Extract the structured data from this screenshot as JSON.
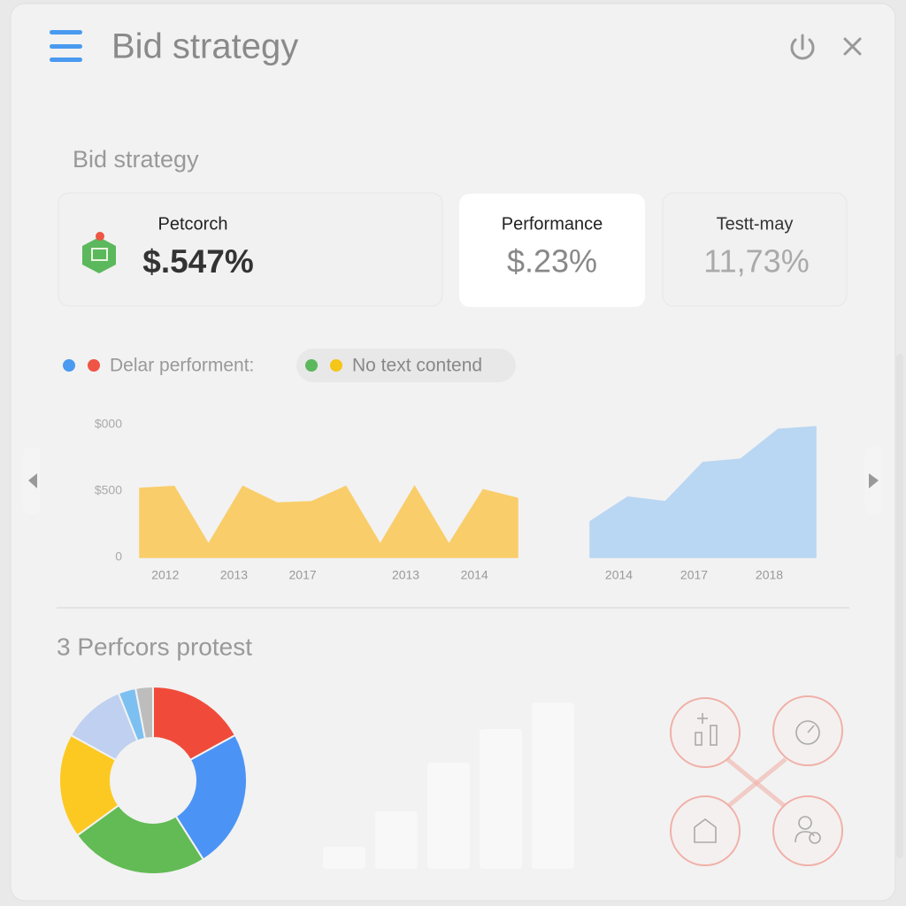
{
  "header": {
    "title": "Bid strategy"
  },
  "section_title": "Bid strategy",
  "cards": [
    {
      "label": "Petcorch",
      "value": "$.547%"
    },
    {
      "label": "Performance",
      "value": "$.23%"
    },
    {
      "label": "Testt-may",
      "value": "11,73%"
    }
  ],
  "legend": [
    {
      "label": "Delar performent:",
      "colors": [
        "#4a9af0",
        "#ee5544"
      ]
    },
    {
      "label": "No text contend",
      "colors": [
        "#5cb85c",
        "#f5c518"
      ]
    }
  ],
  "section2_title": "3 Perfcors protest",
  "chart_data": [
    {
      "type": "area",
      "color": "#f9cd6a",
      "categories": [
        null,
        "2012",
        null,
        "2013",
        null,
        "2017",
        null,
        null,
        "2013",
        null,
        "2014",
        null
      ],
      "values": [
        520,
        535,
        100,
        535,
        410,
        420,
        535,
        100,
        535,
        100,
        510,
        445
      ],
      "ylim": [
        0,
        1000
      ],
      "yticks": [
        {
          "value": 1000,
          "label": "$000"
        },
        {
          "value": 500,
          "label": "$500"
        },
        0
      ]
    },
    {
      "type": "area",
      "color": "#b9d6f2",
      "categories": [
        null,
        "2014",
        null,
        "2017",
        null,
        "2018",
        null
      ],
      "values": [
        270,
        455,
        420,
        715,
        740,
        965,
        985
      ],
      "ylim": [
        0,
        1000
      ]
    },
    {
      "type": "pie",
      "values": [
        17,
        24,
        24,
        18,
        11,
        3,
        3
      ],
      "colors": [
        "#f04b3a",
        "#4b94f5",
        "#62bb55",
        "#fcc923",
        "#bfd0f0",
        "#7cc0f2",
        "#bdbdbd"
      ]
    },
    {
      "type": "bar",
      "color": "#f8f8f8",
      "values": [
        25,
        65,
        120,
        158,
        188
      ],
      "ylim": [
        0,
        200
      ]
    }
  ]
}
